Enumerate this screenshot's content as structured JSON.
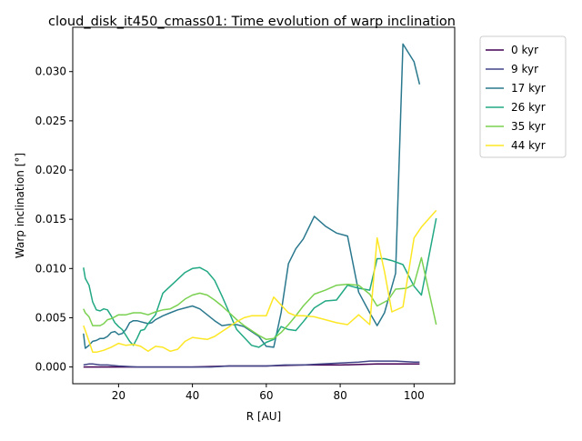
{
  "chart_data": {
    "type": "line",
    "title": "cloud_disk_it450_cmass01: Time evolution of warp inclination",
    "xlabel": "R [AU]",
    "ylabel": "Warp inclination [°]",
    "xlim": [
      7.6,
      111.0
    ],
    "ylim": [
      -0.0017,
      0.0345
    ],
    "xticks": [
      20,
      40,
      60,
      80,
      100
    ],
    "xtick_labels": [
      "20",
      "40",
      "60",
      "80",
      "100"
    ],
    "yticks": [
      0.0,
      0.005,
      0.01,
      0.015,
      0.02,
      0.025,
      0.03
    ],
    "ytick_labels": [
      "0.000",
      "0.005",
      "0.010",
      "0.015",
      "0.020",
      "0.025",
      "0.030"
    ],
    "grid": false,
    "legend_position": "outside-top-right",
    "series": [
      {
        "name": "0 kyr",
        "color": "#440154",
        "x": [
          10.5,
          20,
          30,
          40,
          50,
          60,
          70,
          80,
          90,
          101.5
        ],
        "y": [
          0.0,
          0.0,
          0.0,
          0.0,
          0.0001,
          0.0001,
          0.0002,
          0.0002,
          0.0003,
          0.0003
        ]
      },
      {
        "name": "9 kyr",
        "color": "#414487",
        "x": [
          10.5,
          12,
          13,
          15,
          17,
          20,
          25,
          30,
          35,
          40,
          45,
          50,
          55,
          60,
          65,
          70,
          75,
          80,
          85,
          88,
          90,
          93,
          95,
          100,
          101.5
        ],
        "y": [
          0.0002,
          0.0003,
          0.0003,
          0.0002,
          0.0002,
          0.0001,
          0.0,
          0.0,
          0.0,
          0.0,
          0.0,
          0.0001,
          0.0001,
          0.0001,
          0.0002,
          0.0002,
          0.0003,
          0.0004,
          0.0005,
          0.0006,
          0.0006,
          0.0006,
          0.0006,
          0.0005,
          0.0005
        ]
      },
      {
        "name": "17 kyr",
        "color": "#2a788e",
        "x": [
          10.5,
          11,
          12,
          13,
          14,
          15,
          16,
          17,
          18,
          19,
          20,
          21,
          22,
          23,
          24,
          25,
          26,
          27,
          28,
          29,
          30,
          32,
          34,
          36,
          38,
          40,
          42,
          44,
          46,
          48,
          50,
          52,
          54,
          56,
          58,
          60,
          62,
          64,
          66,
          68,
          70,
          73,
          76,
          79,
          82,
          85,
          88,
          90,
          92,
          95,
          97,
          100,
          101.5
        ],
        "y": [
          0.0034,
          0.0019,
          0.0022,
          0.0026,
          0.0027,
          0.0029,
          0.0029,
          0.0031,
          0.0035,
          0.0036,
          0.0033,
          0.0034,
          0.0038,
          0.0045,
          0.0047,
          0.0047,
          0.0046,
          0.0045,
          0.0044,
          0.0045,
          0.0048,
          0.0052,
          0.0055,
          0.0058,
          0.006,
          0.0062,
          0.0059,
          0.0053,
          0.0047,
          0.0042,
          0.0043,
          0.0043,
          0.0041,
          0.0036,
          0.0031,
          0.0021,
          0.002,
          0.0055,
          0.0105,
          0.012,
          0.013,
          0.0153,
          0.0143,
          0.0136,
          0.0133,
          0.0076,
          0.0055,
          0.0042,
          0.0055,
          0.0095,
          0.0328,
          0.031,
          0.0287
        ]
      },
      {
        "name": "26 kyr",
        "color": "#22a884",
        "x": [
          10.5,
          11,
          12,
          13,
          14,
          15,
          16,
          17,
          18,
          19,
          20,
          21,
          22,
          23,
          24,
          25,
          26,
          27,
          28,
          30,
          32,
          34,
          36,
          38,
          40,
          42,
          44,
          46,
          48,
          50,
          52,
          54,
          56,
          58,
          60,
          62,
          64,
          66,
          68,
          70,
          73,
          76,
          79,
          82,
          85,
          88,
          90,
          92,
          94,
          97,
          100,
          102,
          106
        ],
        "y": [
          0.0101,
          0.009,
          0.0083,
          0.0066,
          0.0058,
          0.0057,
          0.0059,
          0.0058,
          0.0052,
          0.0045,
          0.0041,
          0.0038,
          0.0032,
          0.0026,
          0.0022,
          0.0029,
          0.0037,
          0.0038,
          0.0044,
          0.0053,
          0.0075,
          0.0082,
          0.0089,
          0.0096,
          0.01,
          0.0101,
          0.0097,
          0.0088,
          0.0072,
          0.0055,
          0.0038,
          0.003,
          0.0022,
          0.002,
          0.0025,
          0.0028,
          0.0041,
          0.0038,
          0.0037,
          0.0046,
          0.006,
          0.0067,
          0.0068,
          0.0083,
          0.008,
          0.0078,
          0.011,
          0.011,
          0.0108,
          0.0104,
          0.0082,
          0.0073,
          0.0151
        ]
      },
      {
        "name": "35 kyr",
        "color": "#7ad151",
        "x": [
          10.5,
          11,
          12,
          13,
          14,
          15,
          16,
          17,
          18,
          19,
          20,
          22,
          24,
          26,
          28,
          30,
          32,
          34,
          36,
          38,
          40,
          42,
          44,
          46,
          48,
          50,
          52,
          54,
          56,
          58,
          60,
          62,
          64,
          66,
          68,
          70,
          73,
          76,
          79,
          82,
          85,
          88,
          90,
          93,
          95,
          98,
          100,
          102,
          106
        ],
        "y": [
          0.0059,
          0.0055,
          0.0051,
          0.0042,
          0.0042,
          0.0042,
          0.0044,
          0.0048,
          0.0049,
          0.0051,
          0.0053,
          0.0053,
          0.0055,
          0.0055,
          0.0053,
          0.0056,
          0.0058,
          0.0059,
          0.0063,
          0.0069,
          0.0073,
          0.0075,
          0.0073,
          0.0068,
          0.0062,
          0.0055,
          0.0048,
          0.0042,
          0.0037,
          0.0032,
          0.0028,
          0.0029,
          0.0035,
          0.0043,
          0.0052,
          0.0062,
          0.0074,
          0.0078,
          0.0083,
          0.0084,
          0.0083,
          0.0074,
          0.0062,
          0.0068,
          0.0079,
          0.008,
          0.0084,
          0.0111,
          0.0043
        ]
      },
      {
        "name": "44 kyr",
        "color": "#fde725",
        "x": [
          10.5,
          11,
          12,
          13,
          14,
          15,
          16,
          18,
          20,
          22,
          24,
          26,
          28,
          30,
          32,
          34,
          36,
          38,
          40,
          42,
          44,
          46,
          48,
          50,
          52,
          54,
          56,
          58,
          60,
          62,
          64,
          66,
          68,
          70,
          73,
          76,
          79,
          82,
          85,
          88,
          90,
          92,
          94,
          97,
          100,
          102,
          106
        ],
        "y": [
          0.0042,
          0.0037,
          0.0026,
          0.0015,
          0.0015,
          0.0016,
          0.0017,
          0.002,
          0.0024,
          0.0022,
          0.0023,
          0.0021,
          0.0016,
          0.0021,
          0.002,
          0.0016,
          0.0018,
          0.0026,
          0.003,
          0.0029,
          0.0028,
          0.0031,
          0.0036,
          0.0041,
          0.0046,
          0.005,
          0.0052,
          0.0052,
          0.0052,
          0.0071,
          0.0063,
          0.0055,
          0.0052,
          0.0052,
          0.0051,
          0.0048,
          0.0045,
          0.0043,
          0.0053,
          0.0043,
          0.0131,
          0.0097,
          0.0056,
          0.0061,
          0.0131,
          0.0142,
          0.0159
        ]
      }
    ]
  }
}
